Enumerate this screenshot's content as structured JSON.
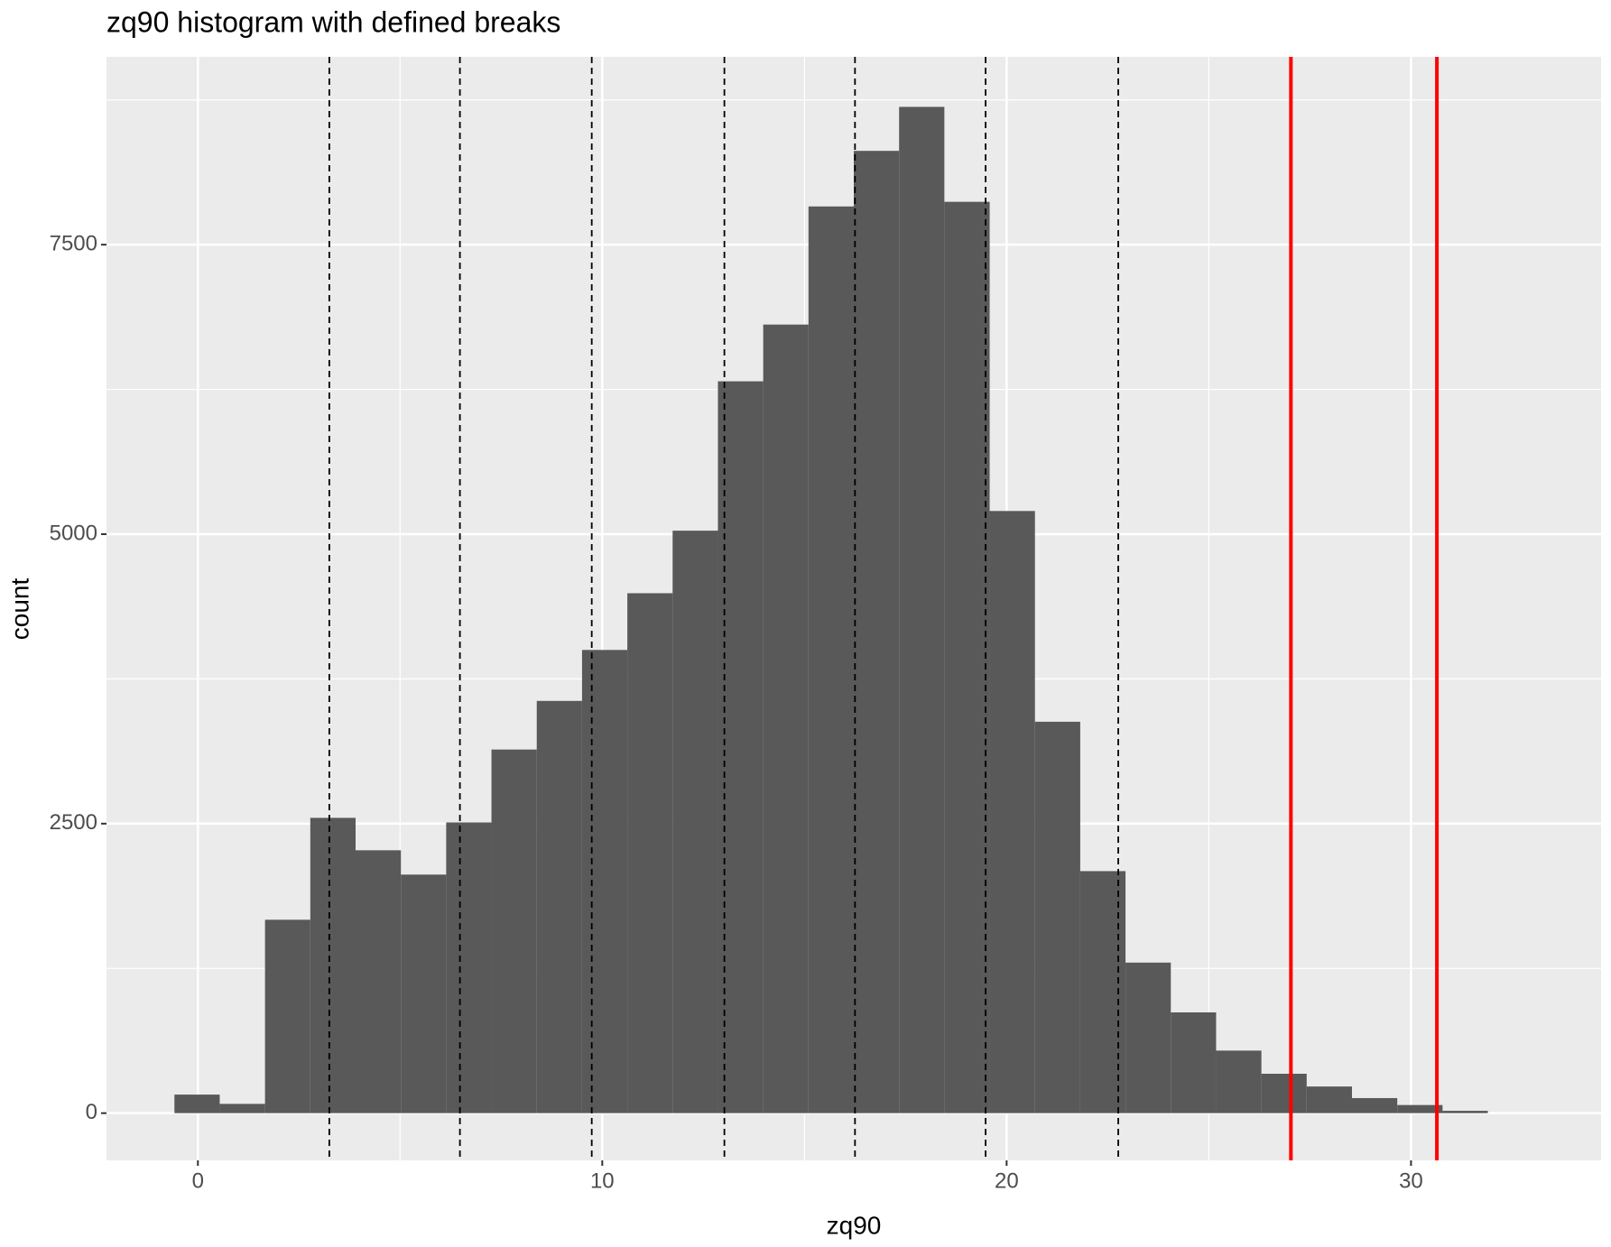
{
  "chart_data": {
    "type": "histogram",
    "title": "zq90 histogram with defined breaks",
    "x_label": "zq90",
    "y_label": "count",
    "bins": [
      -0.58,
      0.54,
      1.66,
      2.78,
      3.9,
      5.02,
      6.14,
      7.26,
      8.38,
      9.5,
      10.62,
      11.74,
      12.86,
      13.98,
      15.1,
      16.22,
      17.34,
      18.46,
      19.58,
      20.7,
      21.82,
      22.94,
      24.06,
      25.18,
      26.3,
      27.42,
      28.54,
      29.66,
      30.78,
      31.9
    ],
    "values": [
      160,
      80,
      1670,
      2550,
      2270,
      2060,
      2510,
      3140,
      3560,
      4000,
      4490,
      5030,
      6320,
      6810,
      7830,
      8310,
      8690,
      7870,
      5200,
      3380,
      2090,
      1300,
      870,
      540,
      340,
      230,
      130,
      70,
      20
    ],
    "color": "#595959",
    "xlim": [
      -2.26,
      34.7
    ],
    "ylim": [
      -408,
      9122
    ],
    "xticks": [
      0,
      10,
      20,
      30
    ],
    "yticks": [
      0,
      2500,
      5000,
      7500
    ],
    "xminor": [
      5,
      15,
      25
    ],
    "yminor": [
      1250,
      3750,
      6250,
      8750
    ],
    "grid": true,
    "vlines": [
      {
        "value": 3.25,
        "color": "#000000",
        "dashed": true
      },
      {
        "value": 6.48,
        "color": "#000000",
        "dashed": true
      },
      {
        "value": 9.74,
        "color": "#000000",
        "dashed": true
      },
      {
        "value": 13.02,
        "color": "#000000",
        "dashed": true
      },
      {
        "value": 16.25,
        "color": "#000000",
        "dashed": true
      },
      {
        "value": 19.48,
        "color": "#000000",
        "dashed": true
      },
      {
        "value": 22.76,
        "color": "#000000",
        "dashed": true
      },
      {
        "value": 27.03,
        "color": "#ff0000",
        "dashed": false
      },
      {
        "value": 30.64,
        "color": "#ff0000",
        "dashed": false
      }
    ]
  }
}
